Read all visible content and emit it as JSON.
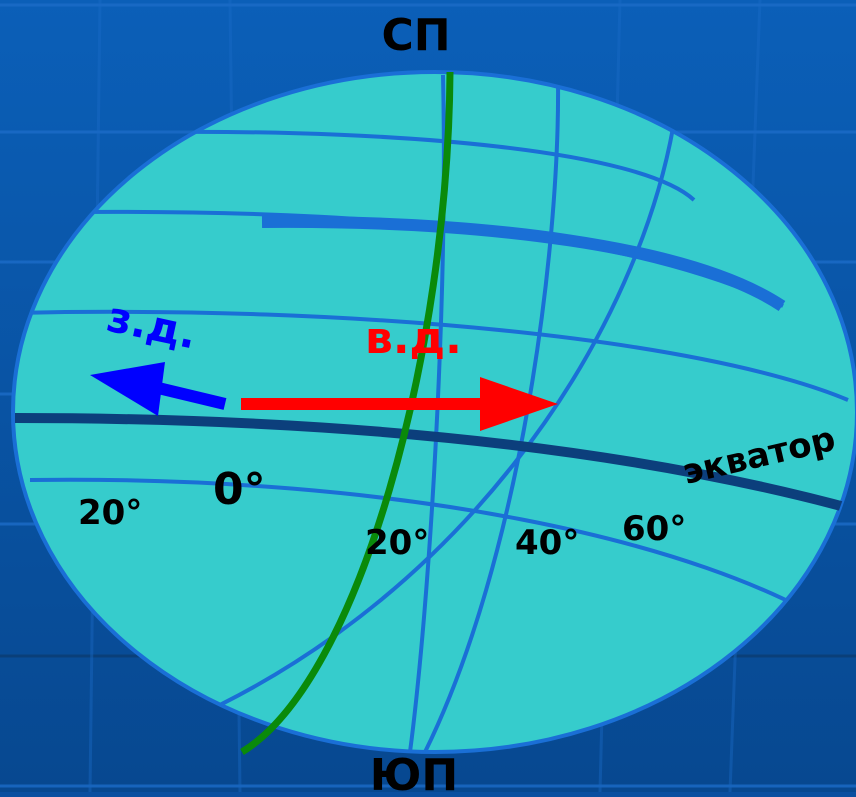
{
  "labels": {
    "north_pole": "СП",
    "south_pole": "ЮП",
    "west_longitude": "з.д.",
    "east_longitude": "в.д.",
    "equator": "экватор",
    "prime_meridian_degree": "0°",
    "west_20": "20°",
    "east_20": "20°",
    "east_40": "40°",
    "east_60": "60°"
  },
  "colors": {
    "background": "#0a55a8",
    "globe_fill": "#36cccc",
    "grid_line": "#1a6fd6",
    "equator_line": "#0c3f7c",
    "prime_meridian": "#0a8a0a",
    "west_arrow": "#0000ff",
    "east_arrow": "#ff0000",
    "label_text": "#000000"
  }
}
